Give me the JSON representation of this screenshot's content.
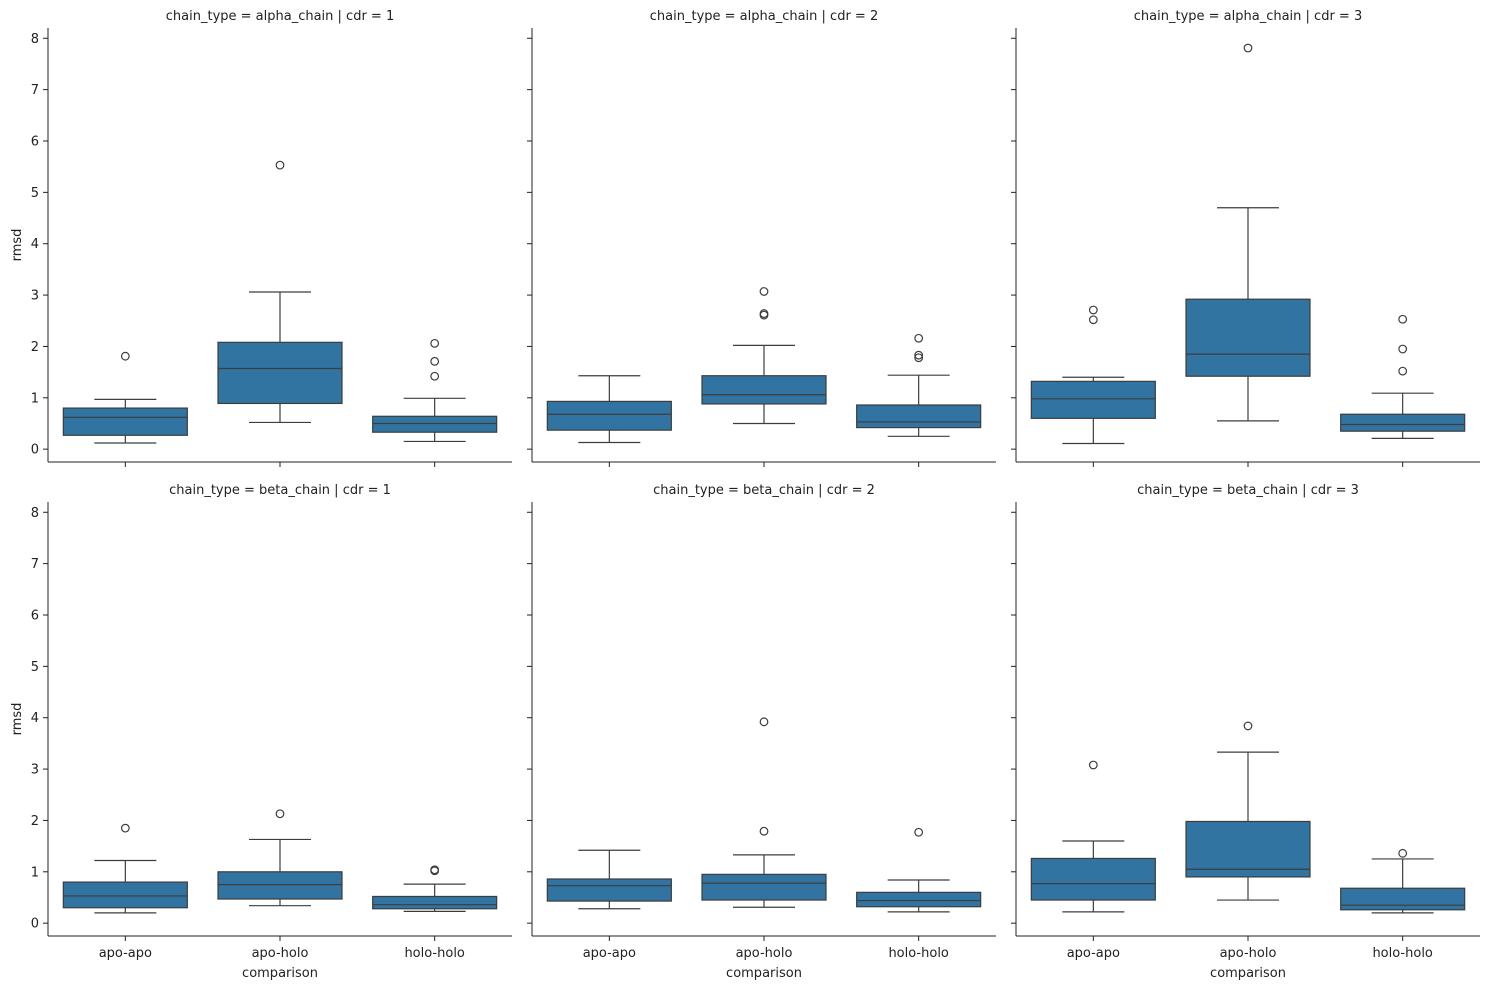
{
  "chart_data": {
    "type": "box",
    "figure_type": "facet-grid boxplot",
    "x_label": "comparison",
    "y_label": "rmsd",
    "categories": [
      "apo-apo",
      "apo-holo",
      "holo-holo"
    ],
    "ylim": [
      -0.25,
      8.2
    ],
    "y_ticks": [
      0,
      1,
      2,
      3,
      4,
      5,
      6,
      7,
      8
    ],
    "box_color": "#3274a1",
    "line_color": "#3d3d3d",
    "panels": [
      {
        "title": "chain_type = alpha_chain | cdr = 1",
        "boxes": [
          {
            "category": "apo-apo",
            "whisker_low": 0.12,
            "q1": 0.27,
            "median": 0.62,
            "q3": 0.8,
            "whisker_high": 0.97,
            "outliers": [
              1.81
            ]
          },
          {
            "category": "apo-holo",
            "whisker_low": 0.52,
            "q1": 0.89,
            "median": 1.57,
            "q3": 2.08,
            "whisker_high": 3.06,
            "outliers": [
              5.53
            ]
          },
          {
            "category": "holo-holo",
            "whisker_low": 0.15,
            "q1": 0.33,
            "median": 0.5,
            "q3": 0.64,
            "whisker_high": 0.99,
            "outliers": [
              1.42,
              1.71,
              2.06
            ]
          }
        ]
      },
      {
        "title": "chain_type = alpha_chain | cdr = 2",
        "boxes": [
          {
            "category": "apo-apo",
            "whisker_low": 0.13,
            "q1": 0.37,
            "median": 0.68,
            "q3": 0.93,
            "whisker_high": 1.43,
            "outliers": []
          },
          {
            "category": "apo-holo",
            "whisker_low": 0.5,
            "q1": 0.88,
            "median": 1.06,
            "q3": 1.43,
            "whisker_high": 2.02,
            "outliers": [
              2.61,
              2.64,
              3.07
            ]
          },
          {
            "category": "holo-holo",
            "whisker_low": 0.25,
            "q1": 0.42,
            "median": 0.53,
            "q3": 0.86,
            "whisker_high": 1.44,
            "outliers": [
              1.78,
              1.83,
              2.16
            ]
          }
        ]
      },
      {
        "title": "chain_type = alpha_chain | cdr = 3",
        "boxes": [
          {
            "category": "apo-apo",
            "whisker_low": 0.11,
            "q1": 0.6,
            "median": 0.98,
            "q3": 1.32,
            "whisker_high": 1.4,
            "outliers": [
              2.52,
              2.71
            ]
          },
          {
            "category": "apo-holo",
            "whisker_low": 0.55,
            "q1": 1.42,
            "median": 1.85,
            "q3": 2.92,
            "whisker_high": 4.7,
            "outliers": [
              7.81
            ]
          },
          {
            "category": "holo-holo",
            "whisker_low": 0.21,
            "q1": 0.35,
            "median": 0.48,
            "q3": 0.68,
            "whisker_high": 1.09,
            "outliers": [
              1.52,
              1.95,
              2.53
            ]
          }
        ]
      },
      {
        "title": "chain_type = beta_chain | cdr = 1",
        "boxes": [
          {
            "category": "apo-apo",
            "whisker_low": 0.2,
            "q1": 0.3,
            "median": 0.53,
            "q3": 0.8,
            "whisker_high": 1.22,
            "outliers": [
              1.85
            ]
          },
          {
            "category": "apo-holo",
            "whisker_low": 0.34,
            "q1": 0.47,
            "median": 0.75,
            "q3": 1.0,
            "whisker_high": 1.63,
            "outliers": [
              2.13
            ]
          },
          {
            "category": "holo-holo",
            "whisker_low": 0.23,
            "q1": 0.28,
            "median": 0.36,
            "q3": 0.52,
            "whisker_high": 0.76,
            "outliers": [
              1.02,
              1.04
            ]
          }
        ]
      },
      {
        "title": "chain_type = beta_chain | cdr = 2",
        "boxes": [
          {
            "category": "apo-apo",
            "whisker_low": 0.28,
            "q1": 0.43,
            "median": 0.73,
            "q3": 0.86,
            "whisker_high": 1.42,
            "outliers": []
          },
          {
            "category": "apo-holo",
            "whisker_low": 0.31,
            "q1": 0.45,
            "median": 0.78,
            "q3": 0.95,
            "whisker_high": 1.33,
            "outliers": [
              1.79,
              3.92
            ]
          },
          {
            "category": "holo-holo",
            "whisker_low": 0.22,
            "q1": 0.32,
            "median": 0.44,
            "q3": 0.6,
            "whisker_high": 0.84,
            "outliers": [
              1.77
            ]
          }
        ]
      },
      {
        "title": "chain_type = beta_chain | cdr = 3",
        "boxes": [
          {
            "category": "apo-apo",
            "whisker_low": 0.22,
            "q1": 0.45,
            "median": 0.77,
            "q3": 1.26,
            "whisker_high": 1.6,
            "outliers": [
              3.08
            ]
          },
          {
            "category": "apo-holo",
            "whisker_low": 0.45,
            "q1": 0.9,
            "median": 1.05,
            "q3": 1.98,
            "whisker_high": 3.33,
            "outliers": [
              3.84
            ]
          },
          {
            "category": "holo-holo",
            "whisker_low": 0.2,
            "q1": 0.26,
            "median": 0.35,
            "q3": 0.68,
            "whisker_high": 1.25,
            "outliers": [
              1.36
            ]
          }
        ]
      }
    ]
  }
}
